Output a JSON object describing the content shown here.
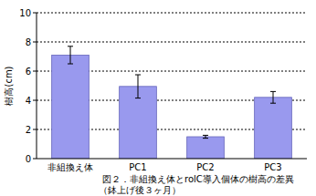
{
  "chart_data": {
    "type": "bar",
    "title": "図２．非組換え体とrolC導入個体の樹高の差異",
    "subtitle": "（鉢上げ後３ヶ月）",
    "y_label": "樹高(cm)",
    "categories": [
      "非組換え体",
      "PC1",
      "PC2",
      "PC3"
    ],
    "values": [
      7.1,
      4.95,
      1.5,
      4.2
    ],
    "errors": [
      0.6,
      0.8,
      0.1,
      0.4
    ],
    "color": "#9999ee",
    "ylim": [
      0,
      10
    ],
    "yticks": [
      0,
      2,
      4,
      6,
      8,
      10
    ],
    "grid": true
  }
}
